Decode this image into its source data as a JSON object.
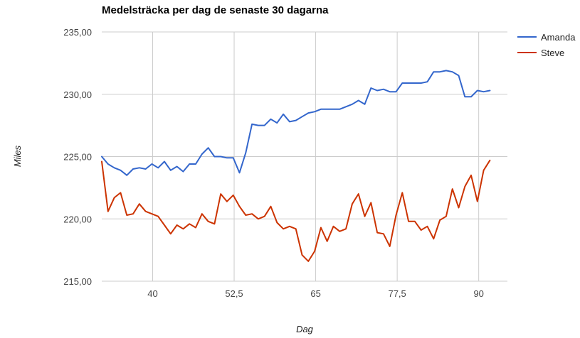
{
  "chart_data": {
    "type": "line",
    "title": "Medelsträcka per dag de senaste 30 dagarna",
    "xlabel": "Dag",
    "ylabel": "Miles",
    "xlim": [
      32.2,
      94.4
    ],
    "ylim": [
      215,
      235
    ],
    "x_ticks": [
      40,
      52.5,
      65,
      77.5,
      90
    ],
    "x_tick_labels": [
      "40",
      "52,5",
      "65",
      "77,5",
      "90"
    ],
    "y_ticks": [
      215,
      220,
      225,
      230,
      235
    ],
    "y_tick_labels": [
      "215,00",
      "220,00",
      "225,00",
      "230,00",
      "235,00"
    ],
    "grid": true,
    "legend_position": "right",
    "x_start": 32.2,
    "x_step": 0.96,
    "series": [
      {
        "name": "Amanda",
        "color": "#3366cc",
        "values": [
          225.0,
          224.4,
          224.1,
          223.9,
          223.5,
          224.0,
          224.1,
          224.0,
          224.4,
          224.1,
          224.6,
          223.9,
          224.2,
          223.8,
          224.4,
          224.4,
          225.2,
          225.7,
          225.0,
          225.0,
          224.9,
          224.9,
          223.7,
          225.3,
          227.6,
          227.5,
          227.5,
          228.0,
          227.7,
          228.4,
          227.8,
          227.9,
          228.2,
          228.5,
          228.6,
          228.8,
          228.8,
          228.8,
          228.8,
          229.0,
          229.2,
          229.5,
          229.2,
          230.5,
          230.3,
          230.4,
          230.2,
          230.2,
          230.9,
          230.9,
          230.9,
          230.9,
          231.0,
          231.8,
          231.8,
          231.9,
          231.8,
          231.5,
          229.8,
          229.8,
          230.3,
          230.2,
          230.3
        ]
      },
      {
        "name": "Steve",
        "color": "#cc3300",
        "values": [
          224.6,
          220.6,
          221.7,
          222.1,
          220.3,
          220.4,
          221.2,
          220.6,
          220.4,
          220.2,
          219.5,
          218.8,
          219.5,
          219.2,
          219.6,
          219.3,
          220.4,
          219.8,
          219.6,
          222.0,
          221.4,
          221.9,
          221.0,
          220.3,
          220.4,
          220.0,
          220.2,
          221.0,
          219.7,
          219.2,
          219.4,
          219.2,
          217.1,
          216.6,
          217.4,
          219.3,
          218.2,
          219.4,
          219.0,
          219.2,
          221.2,
          222.0,
          220.2,
          221.3,
          218.9,
          218.8,
          217.8,
          220.3,
          222.1,
          219.8,
          219.8,
          219.1,
          219.4,
          218.4,
          219.9,
          220.2,
          222.4,
          220.9,
          222.6,
          223.5,
          221.4,
          223.9,
          224.7
        ]
      }
    ]
  }
}
